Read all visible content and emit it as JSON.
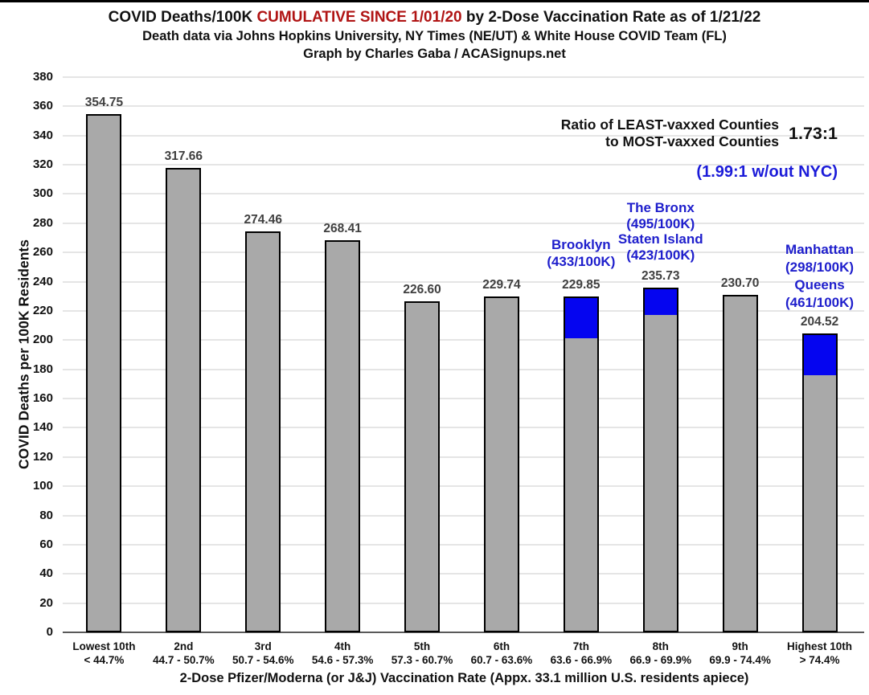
{
  "header": {
    "title_prefix": "COVID Deaths/100K ",
    "title_highlight": "CUMULATIVE SINCE 1/01/20",
    "title_suffix": " by 2-Dose Vaccination Rate as of 1/21/22",
    "subtitle": "Death data via Johns Hopkins University, NY Times (NE/UT) & White House COVID Team (FL)",
    "credit": "Graph by Charles Gaba / ACASignups.net"
  },
  "chart_data": {
    "type": "bar",
    "title": "COVID Deaths/100K CUMULATIVE SINCE 1/01/20 by 2-Dose Vaccination Rate as of 1/21/22",
    "xlabel": "2-Dose Pfizer/Moderna (or  J&J) Vaccination Rate (Appx. 33.1 million U.S. residents apiece)",
    "ylabel": "COVID Deaths per 100K Residents",
    "ylim": [
      0,
      380
    ],
    "ytick_step": 20,
    "grid": true,
    "legend": "none",
    "categories": [
      "Lowest 10th",
      "2nd",
      "3rd",
      "4th",
      "5th",
      "6th",
      "7th",
      "8th",
      "9th",
      "Highest 10th"
    ],
    "category_ranges": [
      "< 44.7%",
      "44.7 - 50.7%",
      "50.7 - 54.6%",
      "54.6 - 57.3%",
      "57.3 - 60.7%",
      "60.7 - 63.6%",
      "63.6 - 66.9%",
      "66.9 - 69.9%",
      "69.9 - 74.4%",
      "> 74.4%"
    ],
    "values": [
      "354.75",
      "317.66",
      "274.46",
      "268.41",
      "226.60",
      "229.74",
      "229.85",
      "235.73",
      "230.70",
      "204.52"
    ],
    "nyc_blue_from": [
      null,
      null,
      null,
      null,
      null,
      null,
      201,
      217,
      null,
      176
    ],
    "bar_color": "#a9a9a9",
    "nyc_segment_color": "#0505f0"
  },
  "annotations": {
    "ratio_line1": "Ratio of LEAST-vaxxed Counties",
    "ratio_line2": "to MOST-vaxxed Counties",
    "ratio_value": "1.73:1",
    "ratio_without_nyc": "(1.99:1 w/out NYC)",
    "boroughs": [
      {
        "bar_index": 6,
        "lines": [
          "Brooklyn",
          "(433/100K)"
        ]
      },
      {
        "bar_index": 7,
        "lines": [
          "The Bronx",
          "(495/100K)",
          "Staten Island",
          "(423/100K)"
        ]
      },
      {
        "bar_index": 9,
        "lines": [
          "Manhattan",
          "(298/100K)",
          "Queens",
          "(461/100K)"
        ]
      }
    ]
  },
  "colors": {
    "title_highlight_red": "#b01414",
    "annotation_blue": "#1e1ecc",
    "bar_gray": "#a9a9a9",
    "bar_blue": "#0505f0",
    "value_label_gray": "#404040",
    "gridline_gray": "#e5e5e5"
  }
}
